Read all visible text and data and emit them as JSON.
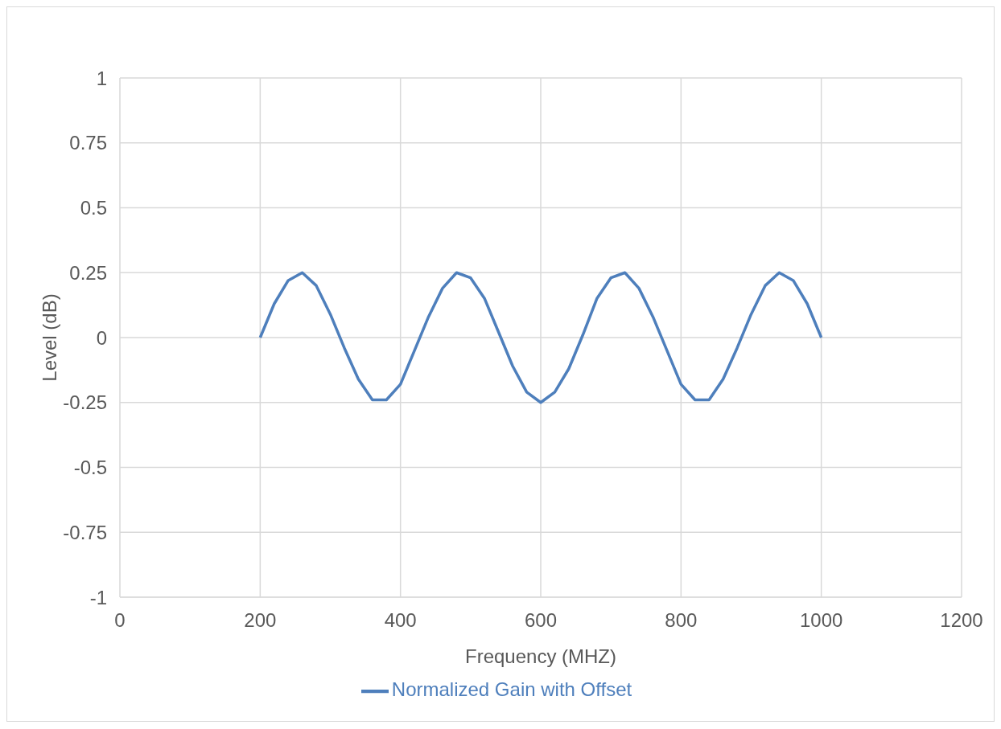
{
  "chart_data": {
    "type": "line",
    "xlabel": "Frequency (MHZ)",
    "ylabel": "Level (dB)",
    "x": [
      200,
      220,
      240,
      260,
      280,
      300,
      320,
      340,
      360,
      380,
      400,
      420,
      440,
      460,
      480,
      500,
      520,
      540,
      560,
      580,
      600,
      620,
      640,
      660,
      680,
      700,
      720,
      740,
      760,
      780,
      800,
      820,
      840,
      860,
      880,
      900,
      920,
      940,
      960,
      980,
      1000
    ],
    "series": [
      {
        "name": "Normalized Gain with Offset",
        "color": "#4e7fbc",
        "values": [
          0,
          0.13,
          0.22,
          0.25,
          0.2,
          0.09,
          -0.04,
          -0.16,
          -0.24,
          -0.24,
          -0.18,
          -0.05,
          0.08,
          0.19,
          0.25,
          0.23,
          0.15,
          0.02,
          -0.11,
          -0.21,
          -0.25,
          -0.21,
          -0.12,
          0.01,
          0.15,
          0.23,
          0.25,
          0.19,
          0.08,
          -0.05,
          -0.18,
          -0.24,
          -0.24,
          -0.16,
          -0.04,
          0.09,
          0.2,
          0.25,
          0.22,
          0.13,
          0
        ]
      }
    ],
    "xlim": [
      0,
      1200
    ],
    "xticks": [
      0,
      200,
      400,
      600,
      800,
      1000,
      1200
    ],
    "ylim": [
      -1,
      1
    ],
    "yticks": [
      -1,
      -0.75,
      -0.5,
      -0.25,
      0,
      0.25,
      0.5,
      0.75,
      1
    ],
    "grid": true,
    "legend": "bottom",
    "marker": "none",
    "line_style": "solid"
  }
}
